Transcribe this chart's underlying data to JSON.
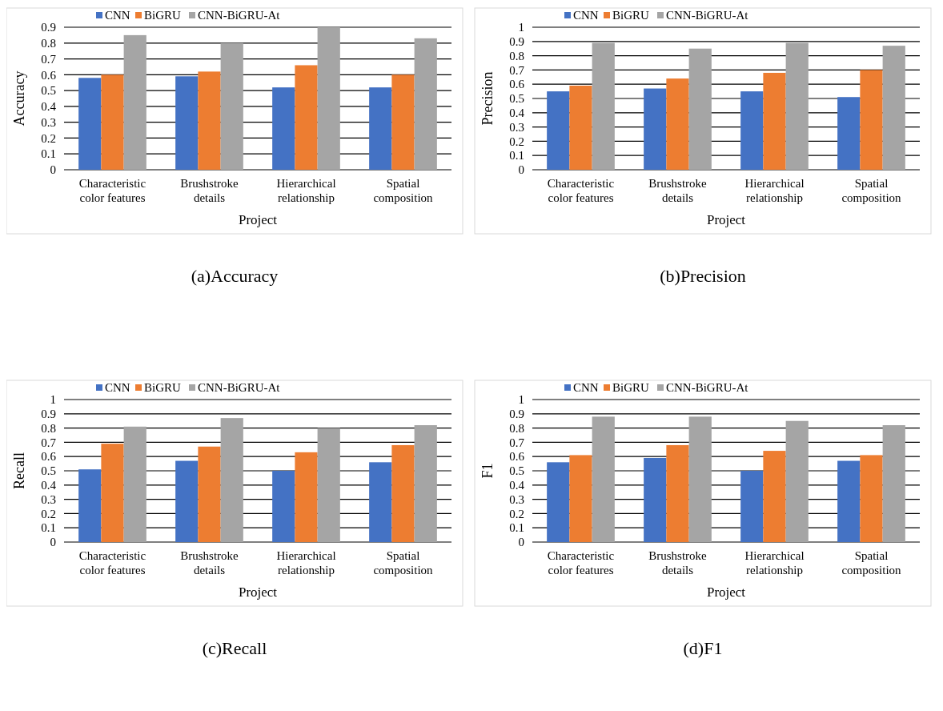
{
  "chart_data": [
    {
      "type": "bar",
      "title": "(a)Accuracy",
      "xlabel": "Project",
      "ylabel": "Accuracy",
      "categories": [
        "Characteristic color features",
        "Brushstroke details",
        "Hierarchical relationship",
        "Spatial composition"
      ],
      "series": [
        {
          "name": "CNN",
          "color": "#4472c4",
          "values": [
            0.58,
            0.59,
            0.52,
            0.52
          ]
        },
        {
          "name": "BiGRU",
          "color": "#ed7d31",
          "values": [
            0.6,
            0.62,
            0.66,
            0.6
          ]
        },
        {
          "name": "CNN-BiGRU-At",
          "color": "#a5a5a5",
          "values": [
            0.85,
            0.8,
            0.9,
            0.83
          ]
        }
      ],
      "ylim": [
        0,
        0.9
      ],
      "yticks": [
        0,
        0.1,
        0.2,
        0.3,
        0.4,
        0.5,
        0.6,
        0.7,
        0.8,
        0.9
      ],
      "grid": "y",
      "legend": "top"
    },
    {
      "type": "bar",
      "title": "(b)Precision",
      "xlabel": "Project",
      "ylabel": "Precision",
      "categories": [
        "Characteristic color features",
        "Brushstroke details",
        "Hierarchical relationship",
        "Spatial composition"
      ],
      "series": [
        {
          "name": "CNN",
          "color": "#4472c4",
          "values": [
            0.55,
            0.57,
            0.55,
            0.51
          ]
        },
        {
          "name": "BiGRU",
          "color": "#ed7d31",
          "values": [
            0.59,
            0.64,
            0.68,
            0.7
          ]
        },
        {
          "name": "CNN-BiGRU-At",
          "color": "#a5a5a5",
          "values": [
            0.89,
            0.85,
            0.89,
            0.87
          ]
        }
      ],
      "ylim": [
        0,
        1
      ],
      "yticks": [
        0,
        0.1,
        0.2,
        0.3,
        0.4,
        0.5,
        0.6,
        0.7,
        0.8,
        0.9,
        1
      ],
      "grid": "y",
      "legend": "top"
    },
    {
      "type": "bar",
      "title": "(c)Recall",
      "xlabel": "Project",
      "ylabel": "Recall",
      "categories": [
        "Characteristic color features",
        "Brushstroke details",
        "Hierarchical relationship",
        "Spatial composition"
      ],
      "series": [
        {
          "name": "CNN",
          "color": "#4472c4",
          "values": [
            0.51,
            0.57,
            0.5,
            0.56
          ]
        },
        {
          "name": "BiGRU",
          "color": "#ed7d31",
          "values": [
            0.69,
            0.67,
            0.63,
            0.68
          ]
        },
        {
          "name": "CNN-BiGRU-At",
          "color": "#a5a5a5",
          "values": [
            0.81,
            0.87,
            0.8,
            0.82
          ]
        }
      ],
      "ylim": [
        0,
        1
      ],
      "yticks": [
        0,
        0.1,
        0.2,
        0.3,
        0.4,
        0.5,
        0.6,
        0.7,
        0.8,
        0.9,
        1
      ],
      "grid": "y",
      "legend": "top"
    },
    {
      "type": "bar",
      "title": "(d)F1",
      "xlabel": "Project",
      "ylabel": "F1",
      "categories": [
        "Characteristic color features",
        "Brushstroke details",
        "Hierarchical relationship",
        "Spatial composition"
      ],
      "series": [
        {
          "name": "CNN",
          "color": "#4472c4",
          "values": [
            0.56,
            0.59,
            0.5,
            0.57
          ]
        },
        {
          "name": "BiGRU",
          "color": "#ed7d31",
          "values": [
            0.61,
            0.68,
            0.64,
            0.61
          ]
        },
        {
          "name": "CNN-BiGRU-At",
          "color": "#a5a5a5",
          "values": [
            0.88,
            0.88,
            0.85,
            0.82
          ]
        }
      ],
      "ylim": [
        0,
        1
      ],
      "yticks": [
        0,
        0.1,
        0.2,
        0.3,
        0.4,
        0.5,
        0.6,
        0.7,
        0.8,
        0.9,
        1
      ],
      "grid": "y",
      "legend": "top"
    }
  ]
}
